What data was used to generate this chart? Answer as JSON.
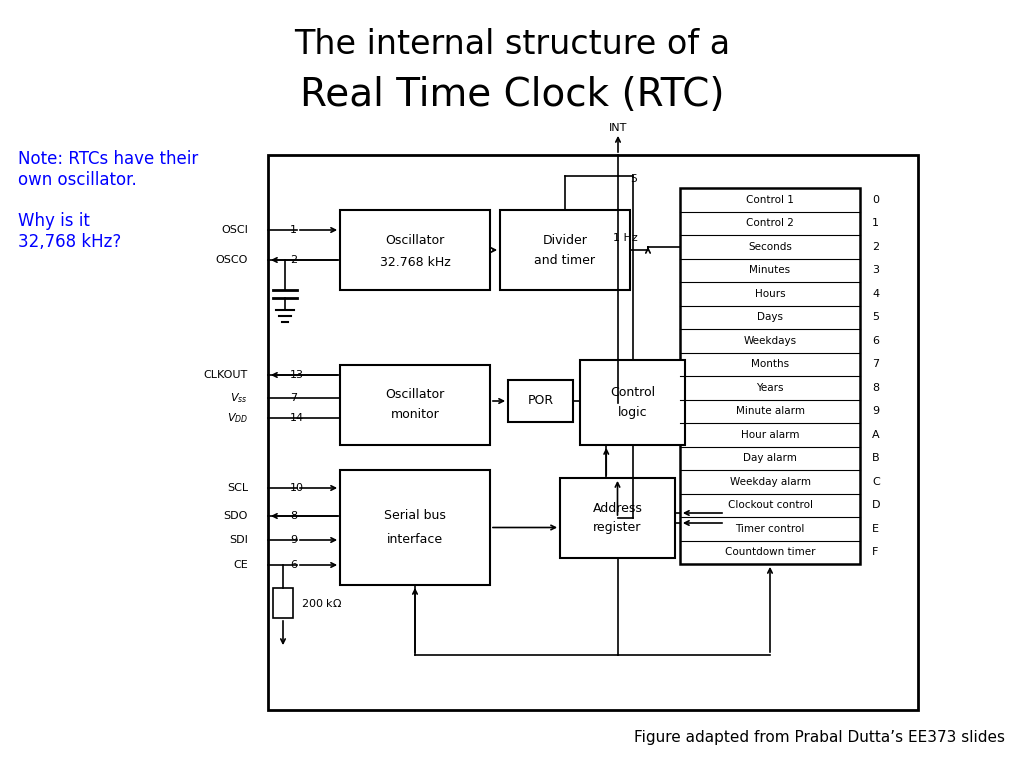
{
  "title_line1": "The internal structure of a",
  "title_line2": "Real Time Clock (RTC)",
  "note_text": "Note: RTCs have their\nown oscillator.\n\nWhy is it\n32,768 kHz?",
  "note_color": "#0000ff",
  "footer": "Figure adapted from Prabal Dutta’s EE373 slides",
  "registers": [
    "Control 1",
    "Control 2",
    "Seconds",
    "Minutes",
    "Hours",
    "Days",
    "Weekdays",
    "Months",
    "Years",
    "Minute alarm",
    "Hour alarm",
    "Day alarm",
    "Weekday alarm",
    "Clockout control",
    "Timer control",
    "Countdown timer"
  ],
  "reg_labels": [
    "0",
    "1",
    "2",
    "3",
    "4",
    "5",
    "6",
    "7",
    "8",
    "9",
    "A",
    "B",
    "C",
    "D",
    "E",
    "F"
  ],
  "bg_color": "#ffffff",
  "box_color": "#000000",
  "title_fontsize": 24,
  "note_fontsize": 12,
  "footer_fontsize": 11
}
